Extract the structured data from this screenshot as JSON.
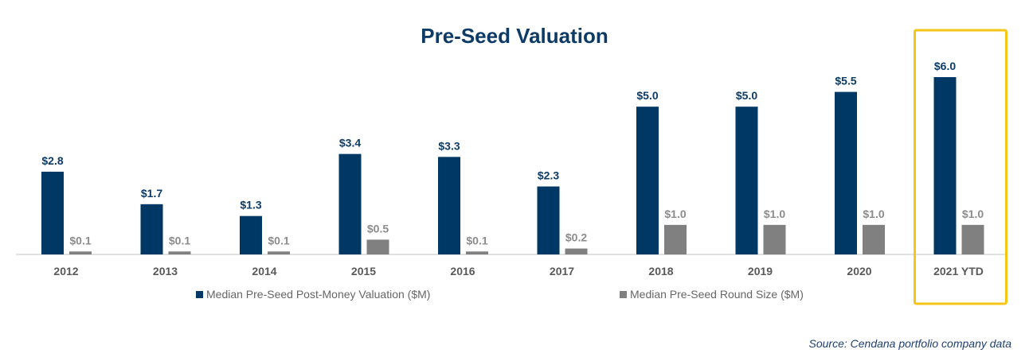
{
  "chart_data": {
    "type": "bar",
    "title": "Pre-Seed Valuation",
    "categories": [
      "2012",
      "2013",
      "2014",
      "2015",
      "2016",
      "2017",
      "2018",
      "2019",
      "2020",
      "2021 YTD"
    ],
    "series": [
      {
        "name": "Median Pre-Seed Post-Money Valuation ($M)",
        "values": [
          2.8,
          1.7,
          1.3,
          3.4,
          3.3,
          2.3,
          5.0,
          5.0,
          5.5,
          6.0
        ],
        "labels": [
          "$2.8",
          "$1.7",
          "$1.3",
          "$3.4",
          "$3.3",
          "$2.3",
          "$5.0",
          "$5.0",
          "$5.5",
          "$6.0"
        ],
        "color": "#003865"
      },
      {
        "name": "Median Pre-Seed Round Size ($M)",
        "values": [
          0.1,
          0.1,
          0.1,
          0.5,
          0.1,
          0.2,
          1.0,
          1.0,
          1.0,
          1.0
        ],
        "labels": [
          "$0.1",
          "$0.1",
          "$0.1",
          "$0.5",
          "$0.1",
          "$0.2",
          "$1.0",
          "$1.0",
          "$1.0",
          "$1.0"
        ],
        "color": "#808080"
      }
    ],
    "highlight": {
      "category": "2021 YTD",
      "color": "#f5c518"
    },
    "legend_position": "bottom",
    "grid": false,
    "ylim": [
      0,
      6.0
    ],
    "source": "Source:  Cendana portfolio company data"
  }
}
